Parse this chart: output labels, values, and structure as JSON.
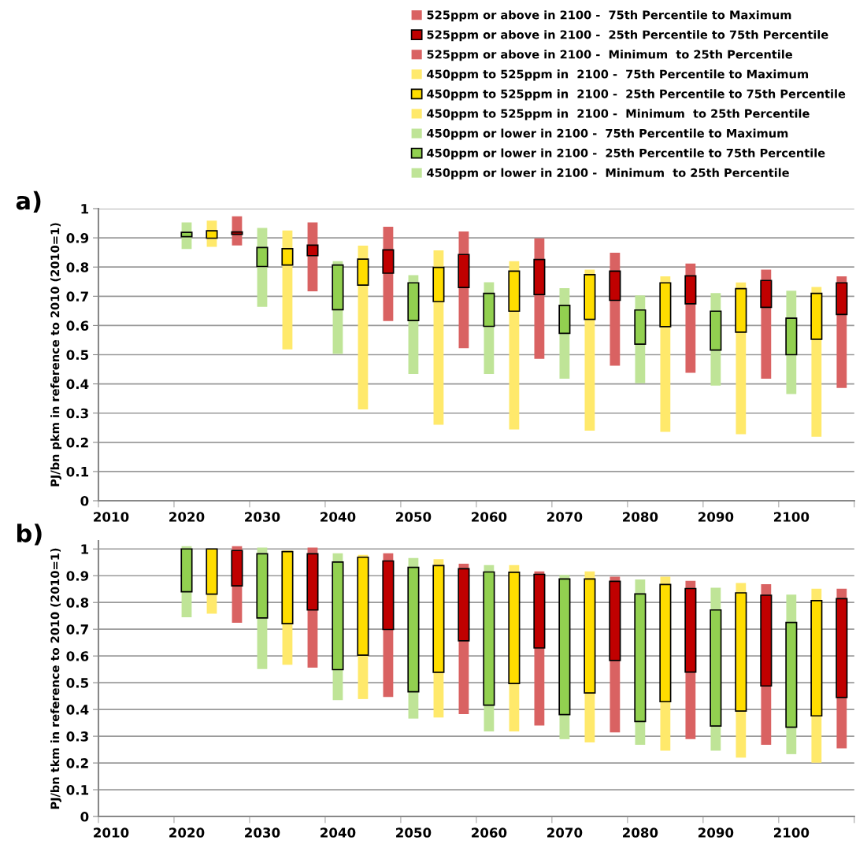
{
  "chart_data": [
    {
      "type": "bar",
      "ylabel": "PJ/bn pkm in reference to 2010 (2010=1)",
      "annotations": [
        "a)"
      ],
      "categories": [
        "2010",
        null,
        null,
        "2020",
        null,
        null,
        "2030",
        null,
        null,
        "2040",
        null,
        null,
        "2050",
        null,
        null,
        "2060",
        null,
        null,
        "2070",
        null,
        null,
        "2080",
        null,
        null,
        "2090",
        null,
        null,
        "2100",
        null,
        null
      ],
      "ylim": [
        0,
        1
      ],
      "yticks": [
        0,
        0.1,
        0.2,
        0.3,
        0.4,
        0.5,
        0.6,
        0.7,
        0.8,
        0.9,
        1
      ],
      "grid": "y",
      "legend": "top right",
      "series": [
        {
          "name": "525ppm or above in 2100 -  75th Percentile to Maximum",
          "color": "#d96262",
          "base": [
            null,
            null,
            null,
            null,
            null,
            0.92,
            null,
            null,
            0.875,
            null,
            null,
            0.859,
            null,
            null,
            0.843,
            null,
            null,
            0.826,
            null,
            null,
            0.786,
            null,
            null,
            0.77,
            null,
            null,
            0.754,
            null,
            null,
            0.746
          ],
          "values": [
            null,
            null,
            null,
            null,
            null,
            0.054,
            null,
            null,
            0.078,
            null,
            null,
            0.079,
            null,
            null,
            0.079,
            null,
            null,
            0.072,
            null,
            null,
            0.063,
            null,
            null,
            0.042,
            null,
            null,
            0.037,
            null,
            null,
            0.022
          ]
        },
        {
          "name": "525ppm or above in 2100 -  25th Percentile to 75th Percentile",
          "color": "#c00000",
          "base": [
            null,
            null,
            null,
            null,
            null,
            0.912,
            null,
            null,
            0.839,
            null,
            null,
            0.779,
            null,
            null,
            0.73,
            null,
            null,
            0.706,
            null,
            null,
            0.686,
            null,
            null,
            0.674,
            null,
            null,
            0.662,
            null,
            null,
            0.638
          ],
          "values": [
            null,
            null,
            null,
            null,
            null,
            0.008,
            null,
            null,
            0.036,
            null,
            null,
            0.08,
            null,
            null,
            0.113,
            null,
            null,
            0.12,
            null,
            null,
            0.1,
            null,
            null,
            0.096,
            null,
            null,
            0.092,
            null,
            null,
            0.108
          ]
        },
        {
          "name": "525ppm or above in 2100 -  Minimum  to 25th Percentile",
          "color": "#d96262",
          "base": [
            null,
            null,
            null,
            null,
            null,
            0.874,
            null,
            null,
            0.717,
            null,
            null,
            0.615,
            null,
            null,
            0.522,
            null,
            null,
            0.486,
            null,
            null,
            0.462,
            null,
            null,
            0.438,
            null,
            null,
            0.418,
            null,
            null,
            0.386
          ],
          "values": [
            null,
            null,
            null,
            null,
            null,
            0.038,
            null,
            null,
            0.122,
            null,
            null,
            0.164,
            null,
            null,
            0.208,
            null,
            null,
            0.22,
            null,
            null,
            0.224,
            null,
            null,
            0.236,
            null,
            null,
            0.244,
            null,
            null,
            0.252
          ]
        },
        {
          "name": "450ppm to 525ppm in  2100 -  75th Percentile to Maximum",
          "color": "#ffe96b",
          "base": [
            null,
            null,
            null,
            null,
            0.924,
            null,
            null,
            0.863,
            null,
            null,
            0.827,
            null,
            null,
            0.799,
            null,
            null,
            0.786,
            null,
            null,
            0.774,
            null,
            null,
            0.746,
            null,
            null,
            0.726,
            null,
            null,
            0.71,
            null
          ],
          "values": [
            null,
            null,
            null,
            null,
            0.035,
            null,
            null,
            0.062,
            null,
            null,
            0.046,
            null,
            null,
            0.058,
            null,
            null,
            0.034,
            null,
            null,
            0.017,
            null,
            null,
            0.022,
            null,
            null,
            0.021,
            null,
            null,
            0.022,
            null
          ]
        },
        {
          "name": "450ppm to 525ppm in  2100 -  25th Percentile to 75th Percentile",
          "color": "#ffdd00",
          "base": [
            null,
            null,
            null,
            null,
            0.899,
            null,
            null,
            0.807,
            null,
            null,
            0.738,
            null,
            null,
            0.682,
            null,
            null,
            0.649,
            null,
            null,
            0.621,
            null,
            null,
            0.596,
            null,
            null,
            0.577,
            null,
            null,
            0.553,
            null
          ],
          "values": [
            null,
            null,
            null,
            null,
            0.025,
            null,
            null,
            0.056,
            null,
            null,
            0.089,
            null,
            null,
            0.117,
            null,
            null,
            0.137,
            null,
            null,
            0.153,
            null,
            null,
            0.15,
            null,
            null,
            0.149,
            null,
            null,
            0.157,
            null
          ]
        },
        {
          "name": "450ppm to 525ppm in  2100 -  Minimum  to 25th Percentile",
          "color": "#ffe96b",
          "base": [
            null,
            null,
            null,
            null,
            0.869,
            null,
            null,
            0.518,
            null,
            null,
            0.313,
            null,
            null,
            0.26,
            null,
            null,
            0.244,
            null,
            null,
            0.24,
            null,
            null,
            0.236,
            null,
            null,
            0.228,
            null,
            null,
            0.219,
            null
          ],
          "values": [
            null,
            null,
            null,
            null,
            0.03,
            null,
            null,
            0.289,
            null,
            null,
            0.425,
            null,
            null,
            0.422,
            null,
            null,
            0.405,
            null,
            null,
            0.381,
            null,
            null,
            0.36,
            null,
            null,
            0.349,
            null,
            null,
            0.334,
            null
          ]
        },
        {
          "name": "450ppm or lower in 2100 -  75th Percentile to Maximum",
          "color": "#bfe497",
          "base": [
            null,
            null,
            null,
            0.919,
            null,
            null,
            0.867,
            null,
            null,
            0.807,
            null,
            null,
            0.746,
            null,
            null,
            0.71,
            null,
            null,
            0.669,
            null,
            null,
            0.653,
            null,
            null,
            0.649,
            null,
            null,
            0.625,
            null,
            null
          ],
          "values": [
            null,
            null,
            null,
            0.034,
            null,
            null,
            0.067,
            null,
            null,
            0.013,
            null,
            null,
            0.026,
            null,
            null,
            0.038,
            null,
            null,
            0.059,
            null,
            null,
            0.05,
            null,
            null,
            0.062,
            null,
            null,
            0.094,
            null,
            null
          ]
        },
        {
          "name": "450ppm or lower in 2100 -  25th Percentile to 75th Percentile",
          "color": "#92d050",
          "base": [
            null,
            null,
            null,
            0.904,
            null,
            null,
            0.802,
            null,
            null,
            0.654,
            null,
            null,
            0.617,
            null,
            null,
            0.597,
            null,
            null,
            0.573,
            null,
            null,
            0.536,
            null,
            null,
            0.516,
            null,
            null,
            0.5,
            null,
            null
          ],
          "values": [
            null,
            null,
            null,
            0.015,
            null,
            null,
            0.065,
            null,
            null,
            0.153,
            null,
            null,
            0.129,
            null,
            null,
            0.113,
            null,
            null,
            0.096,
            null,
            null,
            0.117,
            null,
            null,
            0.133,
            null,
            null,
            0.125,
            null,
            null
          ]
        },
        {
          "name": "450ppm or lower in 2100 -  Minimum  to 25th Percentile",
          "color": "#bfe497",
          "base": [
            null,
            null,
            null,
            0.862,
            null,
            null,
            0.664,
            null,
            null,
            0.503,
            null,
            null,
            0.434,
            null,
            null,
            0.434,
            null,
            null,
            0.418,
            null,
            null,
            0.402,
            null,
            null,
            0.394,
            null,
            null,
            0.365,
            null,
            null
          ],
          "values": [
            null,
            null,
            null,
            0.042,
            null,
            null,
            0.138,
            null,
            null,
            0.151,
            null,
            null,
            0.183,
            null,
            null,
            0.163,
            null,
            null,
            0.155,
            null,
            null,
            0.134,
            null,
            null,
            0.122,
            null,
            null,
            0.135,
            null,
            null
          ]
        }
      ]
    },
    {
      "type": "bar",
      "ylabel": "PJ/bn tkm in reference to 2010 (2010=1)",
      "annotations": [
        "b)"
      ],
      "categories": [
        "2010",
        null,
        null,
        "2020",
        null,
        null,
        "2030",
        null,
        null,
        "2040",
        null,
        null,
        "2050",
        null,
        null,
        "2060",
        null,
        null,
        "2070",
        null,
        null,
        "2080",
        null,
        null,
        "2090",
        null,
        null,
        "2100",
        null,
        null
      ],
      "ylim": [
        0,
        1.03
      ],
      "yticks": [
        0,
        0.1,
        0.2,
        0.3,
        0.4,
        0.5,
        0.6,
        0.7,
        0.8,
        0.9,
        1
      ],
      "grid": "y",
      "series": [
        {
          "color": "#d96262",
          "base": [
            null,
            null,
            null,
            null,
            null,
            0.994,
            null,
            null,
            0.982,
            null,
            null,
            0.955,
            null,
            null,
            0.926,
            null,
            null,
            0.905,
            null,
            null,
            0.879,
            null,
            null,
            0.852,
            null,
            null,
            0.827,
            null,
            null,
            0.814
          ],
          "values": [
            null,
            null,
            null,
            null,
            null,
            0.016,
            null,
            null,
            0.023,
            null,
            null,
            0.029,
            null,
            null,
            0.019,
            null,
            null,
            0.011,
            null,
            null,
            0.017,
            null,
            null,
            0.029,
            null,
            null,
            0.041,
            null,
            null,
            0.037
          ]
        },
        {
          "color": "#c00000",
          "base": [
            null,
            null,
            null,
            null,
            null,
            0.862,
            null,
            null,
            0.772,
            null,
            null,
            0.699,
            null,
            null,
            0.657,
            null,
            null,
            0.63,
            null,
            null,
            0.583,
            null,
            null,
            0.54,
            null,
            null,
            0.488,
            null,
            null,
            0.445
          ],
          "values": [
            null,
            null,
            null,
            null,
            null,
            0.132,
            null,
            null,
            0.21,
            null,
            null,
            0.256,
            null,
            null,
            0.269,
            null,
            null,
            0.275,
            null,
            null,
            0.296,
            null,
            null,
            0.312,
            null,
            null,
            0.339,
            null,
            null,
            0.369
          ]
        },
        {
          "color": "#d96262",
          "base": [
            null,
            null,
            null,
            null,
            null,
            0.724,
            null,
            null,
            0.556,
            null,
            null,
            0.447,
            null,
            null,
            0.383,
            null,
            null,
            0.34,
            null,
            null,
            0.314,
            null,
            null,
            0.289,
            null,
            null,
            0.268,
            null,
            null,
            0.255
          ],
          "values": [
            null,
            null,
            null,
            null,
            null,
            0.138,
            null,
            null,
            0.216,
            null,
            null,
            0.252,
            null,
            null,
            0.274,
            null,
            null,
            0.29,
            null,
            null,
            0.269,
            null,
            null,
            0.251,
            null,
            null,
            0.22,
            null,
            null,
            0.19
          ]
        },
        {
          "color": "#ffe96b",
          "base": [
            null,
            null,
            null,
            null,
            null,
            null,
            null,
            0.99,
            null,
            null,
            0.969,
            null,
            null,
            0.938,
            null,
            null,
            0.913,
            null,
            null,
            0.888,
            null,
            null,
            0.867,
            null,
            null,
            0.836,
            null,
            null,
            0.807,
            null
          ],
          "values": [
            null,
            null,
            null,
            null,
            null,
            null,
            null,
            0.005,
            null,
            null,
            0.009,
            null,
            null,
            0.024,
            null,
            null,
            0.027,
            null,
            null,
            0.028,
            null,
            null,
            0.029,
            null,
            null,
            0.037,
            null,
            null,
            0.044,
            null
          ]
        },
        {
          "color": "#ffdd00",
          "base": [
            null,
            null,
            null,
            null,
            0.831,
            null,
            null,
            0.721,
            null,
            null,
            0.603,
            null,
            null,
            0.539,
            null,
            null,
            0.497,
            null,
            null,
            0.462,
            null,
            null,
            0.429,
            null,
            null,
            0.394,
            null,
            null,
            0.376,
            null
          ],
          "values": [
            null,
            null,
            null,
            null,
            0.169,
            null,
            null,
            0.269,
            null,
            null,
            0.366,
            null,
            null,
            0.399,
            null,
            null,
            0.416,
            null,
            null,
            0.426,
            null,
            null,
            0.438,
            null,
            null,
            0.442,
            null,
            null,
            0.431,
            null
          ]
        },
        {
          "color": "#ffe96b",
          "base": [
            null,
            null,
            null,
            null,
            0.758,
            null,
            null,
            0.567,
            null,
            null,
            0.439,
            null,
            null,
            0.37,
            null,
            null,
            0.318,
            null,
            null,
            0.277,
            null,
            null,
            0.246,
            null,
            null,
            0.22,
            null,
            null,
            0.201,
            null
          ],
          "values": [
            null,
            null,
            null,
            null,
            0.073,
            null,
            null,
            0.154,
            null,
            null,
            0.164,
            null,
            null,
            0.169,
            null,
            null,
            0.179,
            null,
            null,
            0.185,
            null,
            null,
            0.183,
            null,
            null,
            0.174,
            null,
            null,
            0.175,
            null
          ]
        },
        {
          "color": "#bfe497",
          "base": [
            null,
            null,
            null,
            1.0,
            null,
            null,
            0.982,
            null,
            null,
            0.951,
            null,
            null,
            0.931,
            null,
            null,
            0.914,
            null,
            null,
            0.888,
            null,
            null,
            0.832,
            null,
            null,
            0.772,
            null,
            null,
            0.725,
            null,
            null
          ],
          "values": [
            null,
            null,
            null,
            0.01,
            null,
            null,
            0.023,
            null,
            null,
            0.033,
            null,
            null,
            0.035,
            null,
            null,
            0.026,
            null,
            null,
            0.015,
            null,
            null,
            0.054,
            null,
            null,
            0.083,
            null,
            null,
            0.104,
            null,
            null
          ]
        },
        {
          "color": "#92d050",
          "base": [
            null,
            null,
            null,
            0.84,
            null,
            null,
            0.742,
            null,
            null,
            0.549,
            null,
            null,
            0.466,
            null,
            null,
            0.416,
            null,
            null,
            0.381,
            null,
            null,
            0.355,
            null,
            null,
            0.338,
            null,
            null,
            0.334,
            null,
            null
          ],
          "values": [
            null,
            null,
            null,
            0.16,
            null,
            null,
            0.24,
            null,
            null,
            0.402,
            null,
            null,
            0.465,
            null,
            null,
            0.498,
            null,
            null,
            0.507,
            null,
            null,
            0.477,
            null,
            null,
            0.434,
            null,
            null,
            0.391,
            null,
            null
          ]
        },
        {
          "color": "#bfe497",
          "base": [
            null,
            null,
            null,
            0.745,
            null,
            null,
            0.551,
            null,
            null,
            0.435,
            null,
            null,
            0.366,
            null,
            null,
            0.318,
            null,
            null,
            0.289,
            null,
            null,
            0.268,
            null,
            null,
            0.246,
            null,
            null,
            0.233,
            null,
            null
          ],
          "values": [
            null,
            null,
            null,
            0.095,
            null,
            null,
            0.191,
            null,
            null,
            0.114,
            null,
            null,
            0.1,
            null,
            null,
            0.098,
            null,
            null,
            0.092,
            null,
            null,
            0.087,
            null,
            null,
            0.092,
            null,
            null,
            0.101,
            null,
            null
          ]
        }
      ]
    }
  ]
}
